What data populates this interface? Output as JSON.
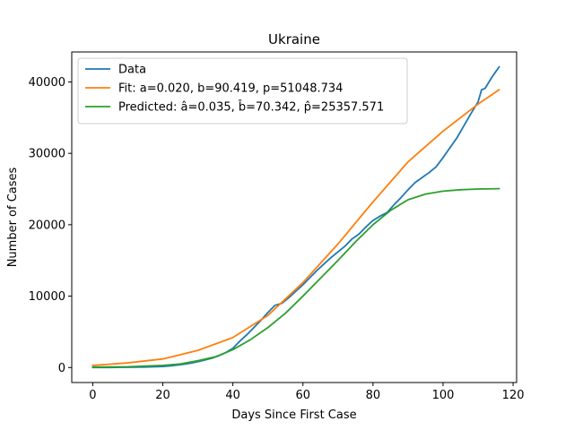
{
  "chart_data": {
    "type": "line",
    "title": "Ukraine",
    "xlabel": "Days Since First Case",
    "ylabel": "Number of Cases",
    "xlim": [
      -6,
      121
    ],
    "ylim": [
      -2100,
      44200
    ],
    "xticks": [
      0,
      20,
      40,
      60,
      80,
      100,
      120
    ],
    "yticks": [
      0,
      10000,
      20000,
      30000,
      40000
    ],
    "grid": false,
    "legend_position": "upper-left",
    "series": [
      {
        "name": "Data",
        "color": "#1f77b4",
        "x": [
          0,
          5,
          10,
          15,
          20,
          22,
          24,
          26,
          28,
          30,
          32,
          34,
          36,
          38,
          40,
          42,
          44,
          46,
          48,
          50,
          52,
          54,
          56,
          58,
          60,
          62,
          64,
          66,
          68,
          70,
          72,
          74,
          76,
          78,
          80,
          82,
          84,
          86,
          88,
          90,
          92,
          94,
          96,
          98,
          100,
          102,
          104,
          106,
          108,
          110,
          111,
          112,
          113,
          114,
          115,
          116
        ],
        "y": [
          0,
          10,
          30,
          70,
          150,
          230,
          330,
          460,
          620,
          820,
          1050,
          1300,
          1650,
          2100,
          2700,
          3700,
          4600,
          5600,
          6600,
          7700,
          8700,
          9000,
          9800,
          10700,
          11600,
          12600,
          13600,
          14500,
          15400,
          16200,
          17000,
          18000,
          18700,
          19700,
          20600,
          21200,
          21700,
          22800,
          23800,
          24900,
          25900,
          26600,
          27300,
          28100,
          29400,
          30800,
          32200,
          33900,
          35600,
          37200,
          38900,
          39100,
          39900,
          40700,
          41400,
          42100
        ]
      },
      {
        "name": "Fit: a=0.020, b=90.419, p=51048.734",
        "color": "#ff7f0e",
        "x": [
          0,
          10,
          20,
          30,
          40,
          50,
          60,
          70,
          80,
          90,
          100,
          110,
          116
        ],
        "y": [
          300,
          650,
          1200,
          2400,
          4200,
          7300,
          11900,
          17300,
          23200,
          28800,
          33100,
          36900,
          38900
        ]
      },
      {
        "name": "Predicted: â=0.035, b̂=70.342, p̂=25357.571",
        "color": "#2ca02c",
        "x": [
          0,
          10,
          20,
          25,
          30,
          35,
          40,
          45,
          50,
          55,
          60,
          65,
          70,
          75,
          80,
          85,
          90,
          95,
          100,
          105,
          110,
          116
        ],
        "y": [
          60,
          110,
          300,
          500,
          950,
          1500,
          2500,
          3900,
          5600,
          7600,
          10000,
          12500,
          15000,
          17600,
          20000,
          22000,
          23500,
          24300,
          24700,
          24900,
          25000,
          25050
        ]
      }
    ]
  }
}
